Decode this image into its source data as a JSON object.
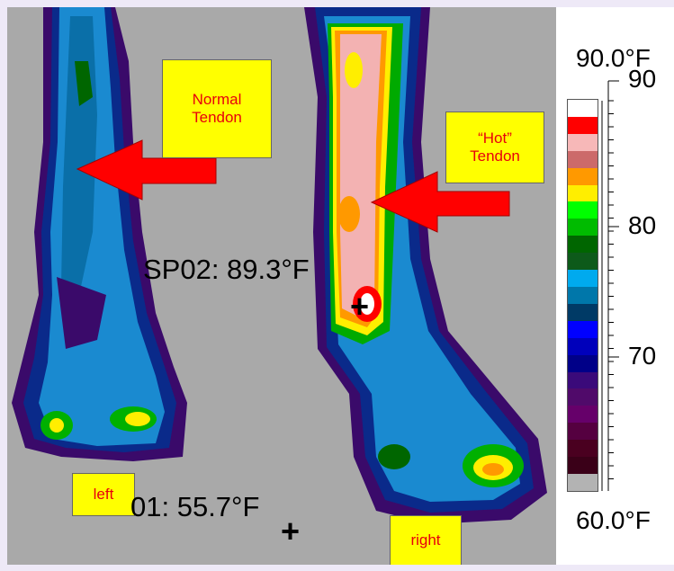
{
  "annotations": {
    "normal_tendon": "Normal\nTendon",
    "hot_tendon": "“Hot”\nTendon",
    "left": "left",
    "right": "right"
  },
  "spots": {
    "sp02": "SP02: 89.3°F",
    "sp01": "01: 55.7°F"
  },
  "scale": {
    "max_label": "90.0°F",
    "min_label": "60.0°F",
    "ticks": [
      "90",
      "80",
      "70"
    ]
  },
  "palette": [
    "#ffffff",
    "#ff0000",
    "#f7b8b8",
    "#cc6a6a",
    "#ff9900",
    "#ffee00",
    "#00ff00",
    "#00bb00",
    "#006600",
    "#0d5a1a",
    "#00aaee",
    "#0077aa",
    "#003a66",
    "#0000ff",
    "#0000bb",
    "#000088",
    "#3a0a7a",
    "#500a6a",
    "#66006a",
    "#550040",
    "#4a0020",
    "#3a0018",
    "#b3b3b3"
  ],
  "colors": {
    "arrow": "#ff0000",
    "note_bg": "#ffff00",
    "note_text": "#e8000c",
    "background": "#a9a9a9"
  }
}
